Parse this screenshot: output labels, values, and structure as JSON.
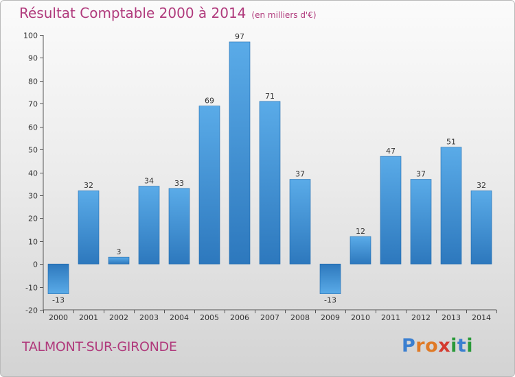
{
  "chart_data": {
    "type": "bar",
    "title": "Résultat Comptable 2000 à 2014",
    "unit_note": "(en milliers d'€)",
    "categories": [
      "2000",
      "2001",
      "2002",
      "2003",
      "2004",
      "2005",
      "2006",
      "2007",
      "2008",
      "2009",
      "2010",
      "2011",
      "2012",
      "2013",
      "2014"
    ],
    "values": [
      -13,
      32,
      3,
      34,
      33,
      69,
      97,
      71,
      37,
      -13,
      12,
      47,
      37,
      51,
      32
    ],
    "value_labels": [
      "-13",
      "32",
      "3",
      "34",
      "33",
      "69",
      "97",
      "71",
      "37",
      "-13",
      "12",
      "47",
      "37",
      "51",
      "32"
    ],
    "yticks": [
      -20,
      -10,
      0,
      10,
      20,
      30,
      40,
      50,
      60,
      70,
      80,
      90,
      100
    ],
    "ylim": [
      -20,
      100
    ],
    "xlabel": "",
    "ylabel": "",
    "grid": false,
    "bar_color": "#3a8fd4",
    "title_color": "#b03a7c"
  },
  "place_name": "TALMONT-SUR-GIRONDE",
  "logo": {
    "letters": [
      "P",
      "r",
      "o",
      "x",
      "i",
      "t",
      "i"
    ],
    "colors": [
      "#3a7fd0",
      "#e07a26",
      "#e07a26",
      "#d43a2f",
      "#2a9a3a",
      "#3a7fd0",
      "#2a9a3a"
    ]
  }
}
